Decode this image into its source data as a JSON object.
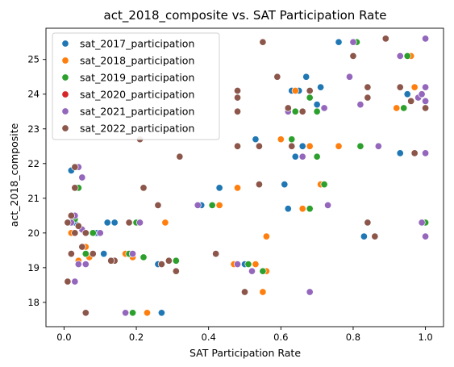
{
  "chart_data": {
    "type": "scatter",
    "title": "act_2018_composite vs. SAT Participation Rate",
    "xlabel": "SAT Participation Rate",
    "ylabel": "act_2018_composite",
    "xlim": [
      -0.05,
      1.05
    ],
    "ylim": [
      17.3,
      25.9
    ],
    "x_ticks": [
      0.0,
      0.2,
      0.4,
      0.6,
      0.8,
      1.0
    ],
    "x_tick_labels": [
      "0.0",
      "0.2",
      "0.4",
      "0.6",
      "0.8",
      "1.0"
    ],
    "y_ticks": [
      18,
      19,
      20,
      21,
      22,
      23,
      24,
      25
    ],
    "y_tick_labels": [
      "18",
      "19",
      "20",
      "21",
      "22",
      "23",
      "24",
      "25"
    ],
    "grid": false,
    "legend_position": "top-left",
    "series": [
      {
        "name": "sat_2017_participation",
        "color": "#1f77b4",
        "points": [
          [
            0.02,
            21.8
          ],
          [
            0.03,
            20.3
          ],
          [
            0.09,
            20.0
          ],
          [
            0.12,
            20.3
          ],
          [
            0.14,
            20.3
          ],
          [
            0.11,
            19.4
          ],
          [
            0.27,
            17.7
          ],
          [
            0.26,
            19.1
          ],
          [
            0.38,
            20.8
          ],
          [
            0.43,
            21.3
          ],
          [
            0.5,
            19.1
          ],
          [
            0.5,
            18.3
          ],
          [
            0.53,
            22.7
          ],
          [
            0.61,
            21.4
          ],
          [
            0.62,
            20.7
          ],
          [
            0.64,
            22.2
          ],
          [
            0.66,
            22.5
          ],
          [
            0.65,
            24.1
          ],
          [
            0.67,
            24.5
          ],
          [
            0.71,
            24.2
          ],
          [
            0.76,
            25.5
          ],
          [
            0.7,
            23.7
          ],
          [
            0.83,
            19.9
          ],
          [
            0.93,
            22.3
          ],
          [
            0.95,
            24.0
          ],
          [
            0.99,
            20.3
          ],
          [
            1.0,
            19.9
          ],
          [
            0.96,
            25.1
          ],
          [
            0.63,
            24.1
          ],
          [
            0.31,
            19.2
          ]
        ]
      },
      {
        "name": "sat_2018_participation",
        "color": "#ff7f0e",
        "points": [
          [
            0.02,
            20.0
          ],
          [
            0.04,
            19.2
          ],
          [
            0.07,
            19.3
          ],
          [
            0.17,
            19.4
          ],
          [
            0.23,
            17.7
          ],
          [
            0.28,
            20.3
          ],
          [
            0.43,
            20.8
          ],
          [
            0.48,
            21.3
          ],
          [
            0.55,
            18.3
          ],
          [
            0.56,
            18.9
          ],
          [
            0.56,
            19.9
          ],
          [
            0.6,
            22.7
          ],
          [
            0.66,
            20.7
          ],
          [
            0.68,
            22.5
          ],
          [
            0.76,
            22.5
          ],
          [
            0.64,
            24.1
          ],
          [
            0.92,
            23.6
          ],
          [
            0.96,
            25.1
          ],
          [
            0.97,
            24.2
          ],
          [
            0.53,
            19.1
          ],
          [
            0.47,
            19.1
          ],
          [
            0.71,
            21.4
          ],
          [
            0.06,
            19.6
          ],
          [
            0.19,
            19.3
          ]
        ]
      },
      {
        "name": "sat_2019_participation",
        "color": "#2ca02c",
        "points": [
          [
            0.03,
            20.4
          ],
          [
            0.06,
            19.4
          ],
          [
            0.08,
            20.0
          ],
          [
            0.19,
            17.7
          ],
          [
            0.2,
            20.3
          ],
          [
            0.22,
            19.3
          ],
          [
            0.31,
            19.2
          ],
          [
            0.41,
            20.8
          ],
          [
            0.51,
            19.1
          ],
          [
            0.55,
            18.9
          ],
          [
            0.63,
            22.7
          ],
          [
            0.64,
            23.5
          ],
          [
            0.68,
            23.9
          ],
          [
            0.68,
            20.7
          ],
          [
            0.7,
            23.5
          ],
          [
            0.7,
            22.2
          ],
          [
            0.72,
            21.4
          ],
          [
            0.82,
            22.5
          ],
          [
            0.81,
            25.5
          ],
          [
            0.94,
            23.6
          ],
          [
            0.95,
            25.1
          ],
          [
            1.0,
            20.3
          ],
          [
            0.04,
            21.3
          ],
          [
            0.18,
            19.4
          ]
        ]
      },
      {
        "name": "sat_2020_participation",
        "color": "#d62728",
        "points": []
      },
      {
        "name": "sat_2021_participation",
        "color": "#9467bd",
        "points": [
          [
            0.02,
            19.4
          ],
          [
            0.03,
            18.6
          ],
          [
            0.04,
            19.1
          ],
          [
            0.05,
            21.6
          ],
          [
            0.04,
            21.9
          ],
          [
            0.03,
            20.5
          ],
          [
            0.05,
            20.1
          ],
          [
            0.1,
            20.0
          ],
          [
            0.17,
            17.7
          ],
          [
            0.19,
            19.4
          ],
          [
            0.21,
            20.3
          ],
          [
            0.29,
            19.2
          ],
          [
            0.37,
            20.8
          ],
          [
            0.48,
            19.1
          ],
          [
            0.52,
            18.9
          ],
          [
            0.62,
            23.5
          ],
          [
            0.66,
            22.2
          ],
          [
            0.68,
            18.3
          ],
          [
            0.72,
            23.6
          ],
          [
            0.73,
            20.8
          ],
          [
            0.79,
            24.5
          ],
          [
            0.8,
            25.5
          ],
          [
            0.82,
            23.7
          ],
          [
            0.87,
            22.5
          ],
          [
            0.93,
            25.1
          ],
          [
            0.98,
            23.9
          ],
          [
            0.99,
            24.0
          ],
          [
            1.0,
            25.6
          ],
          [
            1.0,
            24.2
          ],
          [
            1.0,
            22.3
          ],
          [
            1.0,
            23.8
          ],
          [
            0.99,
            20.3
          ],
          [
            1.0,
            19.9
          ],
          [
            0.02,
            20.3
          ],
          [
            0.06,
            19.1
          ]
        ]
      },
      {
        "name": "sat_2022_participation",
        "color": "#8c564b",
        "points": [
          [
            0.01,
            18.6
          ],
          [
            0.01,
            20.3
          ],
          [
            0.02,
            20.5
          ],
          [
            0.02,
            19.4
          ],
          [
            0.03,
            21.9
          ],
          [
            0.03,
            21.3
          ],
          [
            0.03,
            20.0
          ],
          [
            0.04,
            20.2
          ],
          [
            0.05,
            19.6
          ],
          [
            0.06,
            17.7
          ],
          [
            0.06,
            20.0
          ],
          [
            0.08,
            19.4
          ],
          [
            0.14,
            19.2
          ],
          [
            0.18,
            20.3
          ],
          [
            0.21,
            22.7
          ],
          [
            0.22,
            21.3
          ],
          [
            0.26,
            20.8
          ],
          [
            0.27,
            19.1
          ],
          [
            0.31,
            18.9
          ],
          [
            0.32,
            22.2
          ],
          [
            0.42,
            19.4
          ],
          [
            0.48,
            22.5
          ],
          [
            0.48,
            23.5
          ],
          [
            0.48,
            23.9
          ],
          [
            0.48,
            24.1
          ],
          [
            0.5,
            18.3
          ],
          [
            0.54,
            21.4
          ],
          [
            0.54,
            22.5
          ],
          [
            0.55,
            25.5
          ],
          [
            0.59,
            24.5
          ],
          [
            0.62,
            23.6
          ],
          [
            0.63,
            22.5
          ],
          [
            0.66,
            23.5
          ],
          [
            0.68,
            24.1
          ],
          [
            0.8,
            25.1
          ],
          [
            0.84,
            23.9
          ],
          [
            0.84,
            24.2
          ],
          [
            0.84,
            20.3
          ],
          [
            0.86,
            19.9
          ],
          [
            0.89,
            25.6
          ],
          [
            0.93,
            24.2
          ],
          [
            0.96,
            23.8
          ],
          [
            0.97,
            22.3
          ],
          [
            1.0,
            23.6
          ],
          [
            0.29,
            19.2
          ],
          [
            0.13,
            19.2
          ]
        ]
      }
    ]
  }
}
